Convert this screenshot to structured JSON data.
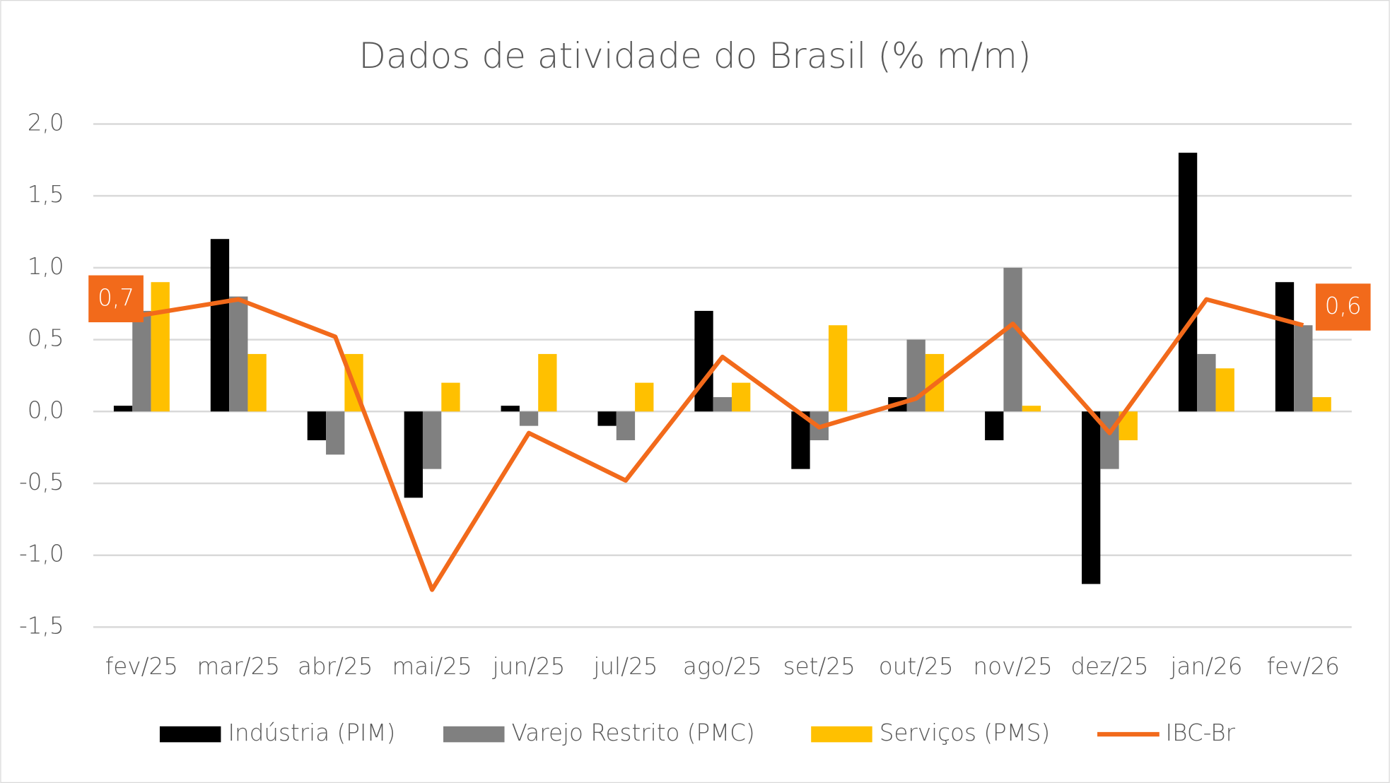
{
  "chart_data": {
    "type": "bar-line",
    "title": "Dados de atividade do Brasil (% m/m)",
    "categories": [
      "fev/25",
      "mar/25",
      "abr/25",
      "mai/25",
      "jun/25",
      "jul/25",
      "ago/25",
      "set/25",
      "out/25",
      "nov/25",
      "dez/25",
      "jan/26",
      "fev/26"
    ],
    "series": [
      {
        "name": "Indústria (PIM)",
        "color": "#000000",
        "type": "bar",
        "values": [
          0.04,
          1.2,
          -0.2,
          -0.6,
          0.04,
          -0.1,
          0.7,
          -0.4,
          0.1,
          -0.2,
          -1.2,
          1.8,
          0.9
        ]
      },
      {
        "name": "Varejo Restrito (PMC)",
        "color": "#808080",
        "type": "bar",
        "values": [
          0.7,
          0.8,
          -0.3,
          -0.4,
          -0.1,
          -0.2,
          0.1,
          -0.2,
          0.5,
          1.0,
          -0.4,
          0.4,
          0.6
        ]
      },
      {
        "name": "Serviços (PMS)",
        "color": "#ffc000",
        "type": "bar",
        "values": [
          0.9,
          0.4,
          0.4,
          0.2,
          0.4,
          0.2,
          0.2,
          0.6,
          0.4,
          0.04,
          -0.2,
          0.3,
          0.1
        ]
      },
      {
        "name": "IBC-Br",
        "color": "#f26a1b",
        "type": "line",
        "values": [
          0.67,
          0.78,
          0.52,
          -1.24,
          -0.15,
          -0.48,
          0.38,
          -0.11,
          0.09,
          0.61,
          -0.15,
          0.78,
          0.6
        ],
        "value_labels": [
          "0,7",
          null,
          null,
          null,
          null,
          null,
          null,
          null,
          null,
          null,
          null,
          null,
          "0,6"
        ]
      }
    ],
    "ylim": [
      -1.5,
      2.0
    ],
    "yticks": [
      {
        "value": -1.5,
        "label": "-1,5"
      },
      {
        "value": -1.0,
        "label": "-1,0"
      },
      {
        "value": -0.5,
        "label": "-0,5"
      },
      {
        "value": 0,
        "label": "0,0"
      },
      {
        "value": 0.5,
        "label": "0,5"
      },
      {
        "value": 1.0,
        "label": "1,0"
      },
      {
        "value": 1.5,
        "label": "1,5"
      },
      {
        "value": 2.0,
        "label": "2,0"
      }
    ],
    "grid": true,
    "legend": "bottom"
  }
}
